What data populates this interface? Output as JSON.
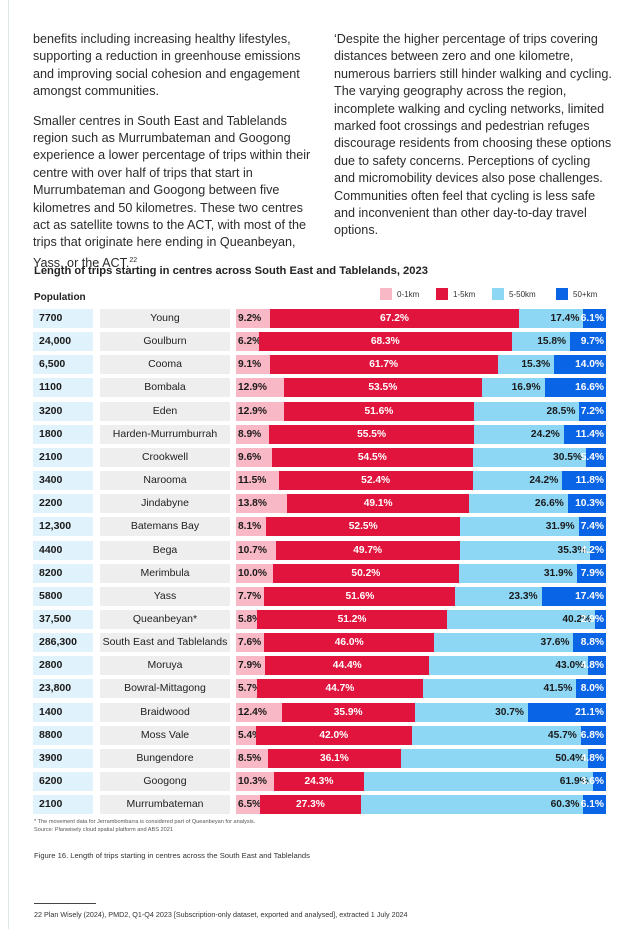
{
  "body_text": {
    "left_p1": "benefits including increasing healthy lifestyles, supporting a reduction in greenhouse emissions and improving social cohesion and engagement amongst communities.",
    "left_p2": "Smaller centres in South East and Tablelands region such as Murrumbateman and Googong experience a lower percentage of trips within their centre with over half of trips that start in Murrumbateman and Googong between five kilometres and 50 kilometres. These two centres act as satellite towns to the ACT, with most of the trips that originate here ending in Queanbeyan, Yass, or the ACT.",
    "left_p2_sup": "22",
    "right_p1": "‘Despite the higher percentage of trips covering distances between zero and one kilometre, numerous barriers still hinder walking and cycling. The varying geography across the region, incomplete walking and cycling networks, limited marked foot crossings and pedestrian refuges discourage residents from choosing these options due to safety concerns. Perceptions of cycling and micromobility devices also pose challenges. Communities often feel that cycling is less safe and inconvenient than other day-to-day travel options."
  },
  "chart_data": {
    "type": "bar",
    "stacked": true,
    "orientation": "horizontal",
    "title": "Length of trips starting in centres across South East and Tablelands, 2023",
    "population_header": "Population",
    "legend_position": "top-right",
    "series": [
      {
        "name": "0-1km",
        "color": "#f9b8c5",
        "label_color": "#1a1a1a"
      },
      {
        "name": "1-5km",
        "color": "#e0143c",
        "label_color": "#ffffff"
      },
      {
        "name": "5-50km",
        "color": "#8dd7f5",
        "label_color": "#1a1a1a"
      },
      {
        "name": "50+km",
        "color": "#0a64e6",
        "label_color": "#ffffff"
      }
    ],
    "rows": [
      {
        "population": "7700",
        "centre": "Young",
        "values": [
          9.2,
          67.2,
          17.4,
          6.1
        ]
      },
      {
        "population": "24,000",
        "centre": "Goulburn",
        "values": [
          6.2,
          68.3,
          15.8,
          9.7
        ]
      },
      {
        "population": "6,500",
        "centre": "Cooma",
        "values": [
          9.1,
          61.7,
          15.3,
          14.0
        ]
      },
      {
        "population": "1100",
        "centre": "Bombala",
        "values": [
          12.9,
          53.5,
          16.9,
          16.6
        ]
      },
      {
        "population": "3200",
        "centre": "Eden",
        "values": [
          12.9,
          51.6,
          28.5,
          7.2
        ]
      },
      {
        "population": "1800",
        "centre": "Harden-Murrumburrah",
        "values": [
          8.9,
          55.5,
          24.2,
          11.4
        ]
      },
      {
        "population": "2100",
        "centre": "Crookwell",
        "values": [
          9.6,
          54.5,
          30.5,
          5.4
        ]
      },
      {
        "population": "3400",
        "centre": "Narooma",
        "values": [
          11.5,
          52.4,
          24.2,
          11.8
        ]
      },
      {
        "population": "2200",
        "centre": "Jindabyne",
        "values": [
          13.8,
          49.1,
          26.6,
          10.3
        ]
      },
      {
        "population": "12,300",
        "centre": "Batemans Bay",
        "values": [
          8.1,
          52.5,
          31.9,
          7.4
        ]
      },
      {
        "population": "4400",
        "centre": "Bega",
        "values": [
          10.7,
          49.7,
          35.3,
          4.2
        ]
      },
      {
        "population": "8200",
        "centre": "Merimbula",
        "values": [
          10.0,
          50.2,
          31.9,
          7.9
        ]
      },
      {
        "population": "5800",
        "centre": "Yass",
        "values": [
          7.7,
          51.6,
          23.3,
          17.4
        ]
      },
      {
        "population": "37,500",
        "centre": "Queanbeyan*",
        "values": [
          5.8,
          51.2,
          40.2,
          2.9
        ]
      },
      {
        "population": "286,300",
        "centre": "South East and Tablelands",
        "values": [
          7.6,
          46.0,
          37.6,
          8.8
        ]
      },
      {
        "population": "2800",
        "centre": "Moruya",
        "values": [
          7.9,
          44.4,
          43.0,
          4.8
        ]
      },
      {
        "population": "23,800",
        "centre": "Bowral-Mittagong",
        "values": [
          5.7,
          44.7,
          41.5,
          8.0
        ]
      },
      {
        "population": "1400",
        "centre": "Braidwood",
        "values": [
          12.4,
          35.9,
          30.7,
          21.1
        ]
      },
      {
        "population": "8800",
        "centre": "Moss Vale",
        "values": [
          5.4,
          42.0,
          45.7,
          6.8
        ]
      },
      {
        "population": "3900",
        "centre": "Bungendore",
        "values": [
          8.5,
          36.1,
          50.4,
          4.8
        ]
      },
      {
        "population": "6200",
        "centre": "Googong",
        "values": [
          10.3,
          24.3,
          61.9,
          3.6
        ]
      },
      {
        "population": "2100",
        "centre": "Murrumbateman",
        "values": [
          6.5,
          27.3,
          60.3,
          6.1
        ]
      }
    ]
  },
  "footnotes": {
    "line1": "* The movement data for Jerrambombarra is considered part of Queanbeyan for analysis.",
    "line2": "Source: Planwisely cloud spatial platform and ABS 2021"
  },
  "figure_caption": "Figure 16. Length of trips starting in centres across the South East and Tablelands",
  "page_footer": "22   Plan Wisely (2024), PMD2, Q1-Q4 2023 [Subscription-only dataset, exported and analysed], extracted 1 July 2024"
}
